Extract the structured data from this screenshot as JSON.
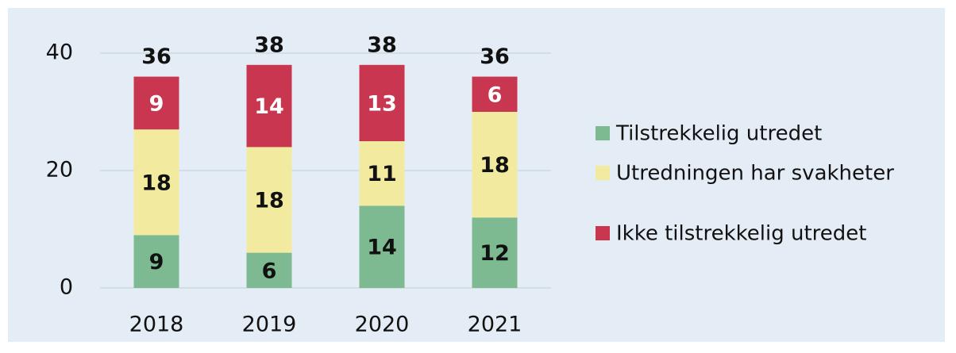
{
  "chart_data": {
    "type": "stacked_bar",
    "categories": [
      "2018",
      "2019",
      "2020",
      "2021"
    ],
    "series": [
      {
        "name": "Tilstrekkelig utredet",
        "color": "#7db991",
        "values": [
          9,
          6,
          14,
          12
        ]
      },
      {
        "name": "Utredningen har svakheter",
        "color": "#f2eb9f",
        "values": [
          18,
          18,
          11,
          18
        ]
      },
      {
        "name": "Ikke tilstrekkelig utredet",
        "color": "#c8374f",
        "values": [
          9,
          14,
          13,
          6
        ]
      }
    ],
    "totals": [
      36,
      38,
      38,
      36
    ],
    "ylim": [
      0,
      40
    ],
    "yticks": [
      0,
      20,
      40
    ],
    "grid": true,
    "legend": "right"
  }
}
